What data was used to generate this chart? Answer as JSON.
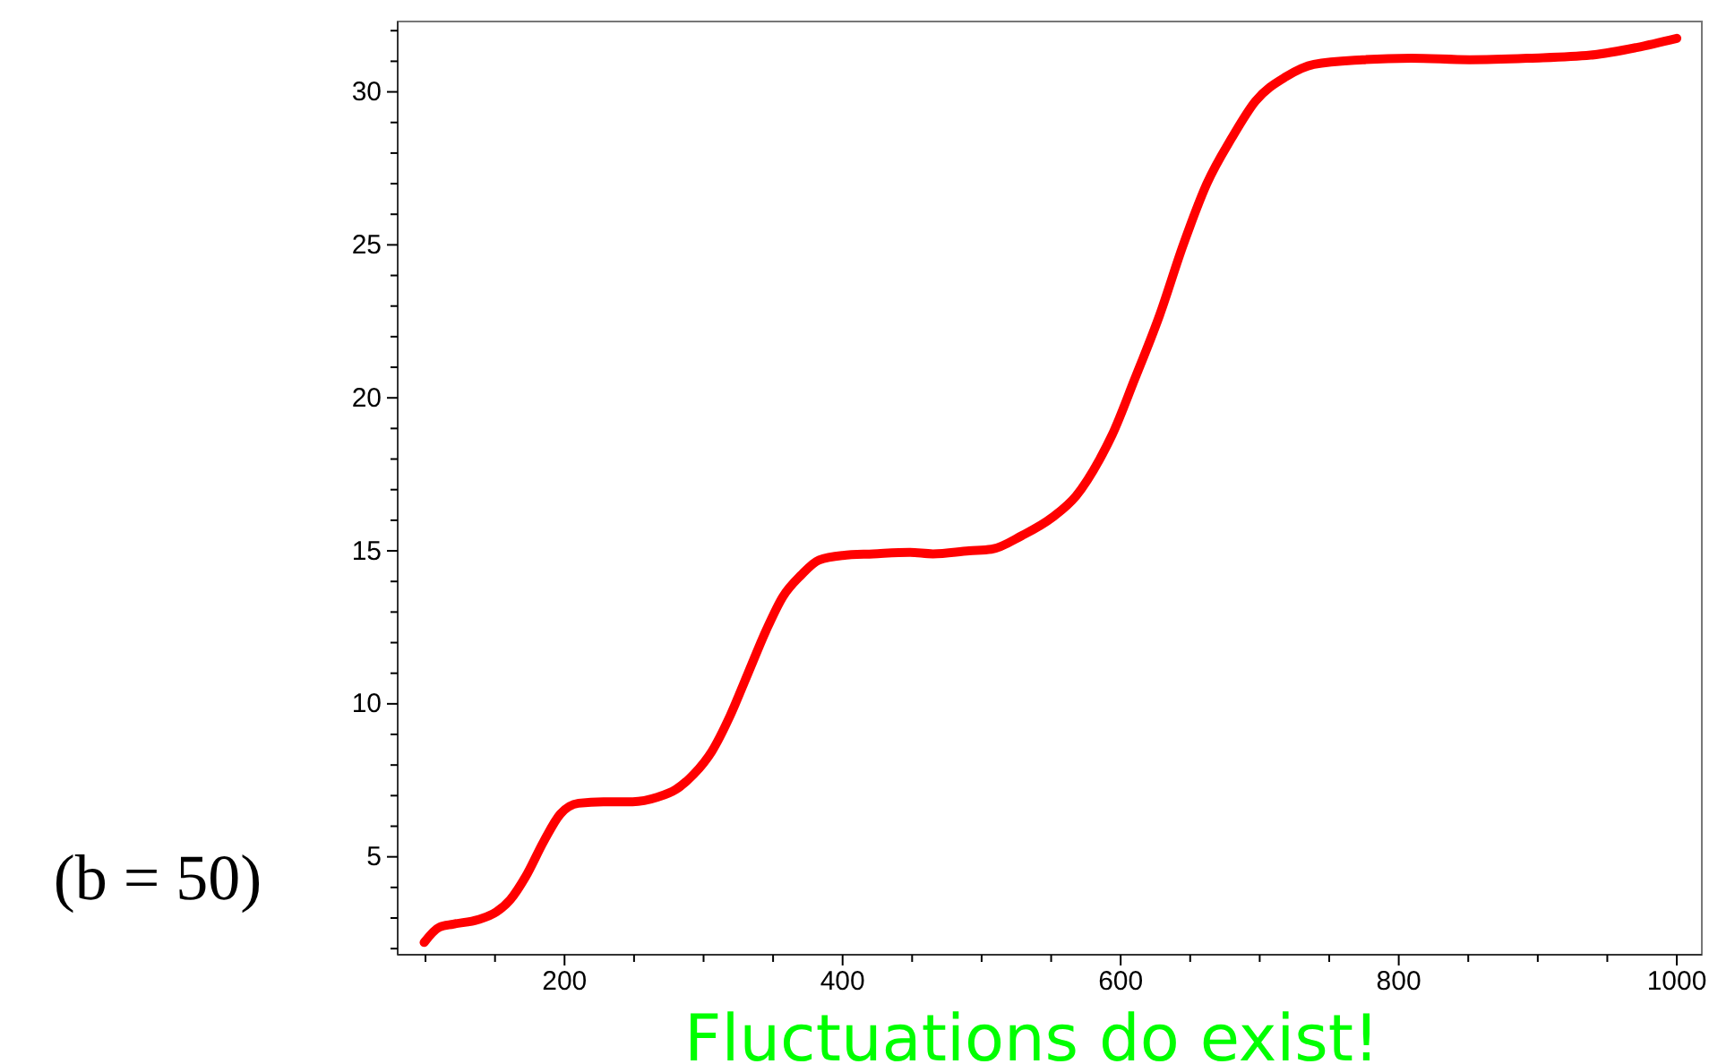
{
  "chart_data": {
    "type": "line",
    "xlabel": "Fluctuations do exist!",
    "ylabel": "(b = 50)",
    "xlim": [
      80,
      1018
    ],
    "ylim": [
      1.8,
      32.3
    ],
    "xticks": [
      {
        "value": 100,
        "label": null
      },
      {
        "value": 150,
        "label": null
      },
      200,
      {
        "value": 250,
        "label": null
      },
      {
        "value": 300,
        "label": null
      },
      {
        "value": 350,
        "label": null
      },
      400,
      {
        "value": 450,
        "label": null
      },
      {
        "value": 500,
        "label": null
      },
      {
        "value": 550,
        "label": null
      },
      600,
      {
        "value": 650,
        "label": null
      },
      {
        "value": 700,
        "label": null
      },
      {
        "value": 750,
        "label": null
      },
      800,
      {
        "value": 850,
        "label": null
      },
      {
        "value": 900,
        "label": null
      },
      {
        "value": 950,
        "label": null
      },
      1000
    ],
    "yticks": [
      {
        "value": 2,
        "label": null
      },
      {
        "value": 3,
        "label": null
      },
      {
        "value": 4,
        "label": null
      },
      5,
      {
        "value": 6,
        "label": null
      },
      {
        "value": 7,
        "label": null
      },
      {
        "value": 8,
        "label": null
      },
      {
        "value": 9,
        "label": null
      },
      10,
      {
        "value": 11,
        "label": null
      },
      {
        "value": 12,
        "label": null
      },
      {
        "value": 13,
        "label": null
      },
      {
        "value": 14,
        "label": null
      },
      15,
      {
        "value": 16,
        "label": null
      },
      {
        "value": 17,
        "label": null
      },
      {
        "value": 18,
        "label": null
      },
      {
        "value": 19,
        "label": null
      },
      20,
      {
        "value": 21,
        "label": null
      },
      {
        "value": 22,
        "label": null
      },
      {
        "value": 23,
        "label": null
      },
      {
        "value": 24,
        "label": null
      },
      25,
      {
        "value": 26,
        "label": null
      },
      {
        "value": 27,
        "label": null
      },
      {
        "value": 28,
        "label": null
      },
      {
        "value": 29,
        "label": null
      },
      30,
      {
        "value": 31,
        "label": null
      },
      {
        "value": 32,
        "label": null
      }
    ],
    "grid": false,
    "marker": "none",
    "line_style": "solid",
    "series": [
      {
        "color": "#ff0000",
        "x": [
          99,
          110,
          120,
          138,
          151,
          161,
          172,
          185,
          197,
          210,
          228,
          249,
          267,
          280,
          293,
          306,
          319,
          332,
          345,
          357,
          370,
          383,
          400,
          422,
          448,
          465,
          491,
          507,
          529,
          551,
          568,
          585,
          594,
          610,
          628,
          645,
          662,
          680,
          697,
          719,
          739,
          774,
          809,
          851,
          894,
          938,
          971,
          1000
        ],
        "values": [
          2.2,
          2.7,
          2.8,
          2.95,
          3.2,
          3.6,
          4.35,
          5.5,
          6.4,
          6.75,
          6.8,
          6.8,
          6.95,
          7.2,
          7.7,
          8.45,
          9.6,
          11,
          12.4,
          13.5,
          14.2,
          14.7,
          14.85,
          14.9,
          14.95,
          14.9,
          15,
          15.05,
          15.5,
          16.1,
          16.8,
          18,
          18.8,
          20.6,
          22.7,
          25,
          27,
          28.5,
          29.7,
          30.5,
          30.9,
          31.05,
          31.1,
          31.05,
          31.1,
          31.2,
          31.45,
          31.75
        ]
      }
    ]
  }
}
